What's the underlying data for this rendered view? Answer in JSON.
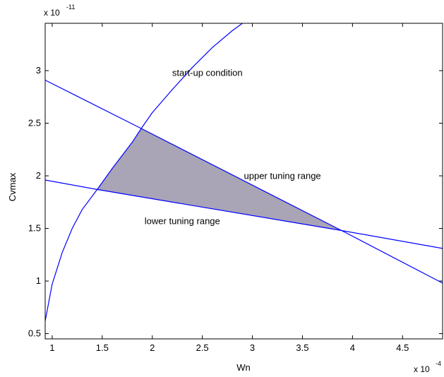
{
  "chart_data": {
    "type": "line",
    "title": "",
    "xlabel": "Wn",
    "ylabel": "Cvmax",
    "x_multiplier": {
      "base": "x 10",
      "exponent": "-4"
    },
    "y_multiplier": {
      "base": "x 10",
      "exponent": "-11"
    },
    "xlim": [
      0.93,
      4.9
    ],
    "ylim": [
      0.45,
      3.45
    ],
    "x_ticks": [
      1,
      1.5,
      2,
      2.5,
      3,
      3.5,
      4,
      4.5
    ],
    "x_tick_labels": [
      "1",
      "1.5",
      "2",
      "2.5",
      "3",
      "3.5",
      "4",
      "4.5"
    ],
    "y_ticks": [
      0.5,
      1,
      1.5,
      2,
      2.5,
      3
    ],
    "y_tick_labels": [
      "0.5",
      "1",
      "1.5",
      "2",
      "2.5",
      "3"
    ],
    "grid": false,
    "line_color": "#0000ff",
    "fill_color": "#a9a4b6",
    "series": [
      {
        "x": [
          0.93,
          1.0,
          1.1,
          1.2,
          1.3,
          1.45,
          1.6,
          1.8,
          1.89,
          2.0,
          2.2,
          2.4,
          2.6,
          2.8,
          2.9
        ],
        "y": [
          0.62,
          0.97,
          1.27,
          1.5,
          1.68,
          1.87,
          2.07,
          2.32,
          2.45,
          2.6,
          2.82,
          3.03,
          3.22,
          3.38,
          3.45
        ]
      },
      {
        "x": [
          0.93,
          1.89,
          3.89,
          4.9
        ],
        "y": [
          2.91,
          2.45,
          1.48,
          0.98
        ]
      },
      {
        "x": [
          0.93,
          1.45,
          3.89,
          4.9
        ],
        "y": [
          1.96,
          1.87,
          1.48,
          1.31
        ]
      }
    ],
    "feasible_region": {
      "x": [
        1.45,
        1.6,
        1.8,
        1.89,
        3.89
      ],
      "y": [
        1.87,
        2.07,
        2.32,
        2.45,
        1.48
      ]
    },
    "annotations": [
      {
        "text": "start-up condition",
        "x": 2.55,
        "y": 2.95
      },
      {
        "text": "upper tuning range",
        "x": 3.3,
        "y": 1.97
      },
      {
        "text": "lower tuning range",
        "x": 2.3,
        "y": 1.54
      }
    ]
  }
}
